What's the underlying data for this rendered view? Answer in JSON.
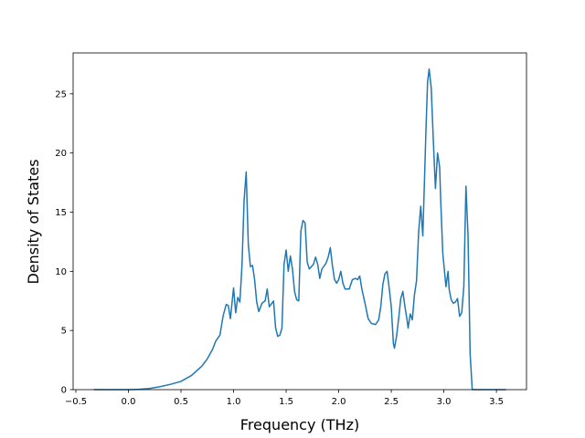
{
  "chart_data": {
    "type": "line",
    "x_label": "Frequency (THz)",
    "y_label": "Density of States",
    "x": [
      -0.33,
      0.0,
      0.1,
      0.2,
      0.3,
      0.4,
      0.5,
      0.6,
      0.7,
      0.75,
      0.8,
      0.83,
      0.87,
      0.9,
      0.93,
      0.95,
      0.97,
      1.0,
      1.02,
      1.04,
      1.06,
      1.08,
      1.1,
      1.12,
      1.14,
      1.16,
      1.18,
      1.2,
      1.22,
      1.24,
      1.27,
      1.3,
      1.32,
      1.34,
      1.38,
      1.4,
      1.42,
      1.44,
      1.46,
      1.48,
      1.5,
      1.52,
      1.54,
      1.56,
      1.58,
      1.6,
      1.62,
      1.64,
      1.66,
      1.68,
      1.7,
      1.72,
      1.76,
      1.78,
      1.8,
      1.82,
      1.84,
      1.88,
      1.9,
      1.92,
      1.94,
      1.96,
      1.98,
      2.0,
      2.02,
      2.04,
      2.06,
      2.1,
      2.13,
      2.16,
      2.18,
      2.2,
      2.22,
      2.25,
      2.28,
      2.31,
      2.35,
      2.38,
      2.4,
      2.42,
      2.44,
      2.46,
      2.48,
      2.5,
      2.52,
      2.53,
      2.55,
      2.57,
      2.59,
      2.61,
      2.63,
      2.65,
      2.66,
      2.68,
      2.7,
      2.72,
      2.74,
      2.76,
      2.78,
      2.8,
      2.83,
      2.845,
      2.86,
      2.88,
      2.9,
      2.92,
      2.94,
      2.96,
      2.97,
      2.99,
      3.02,
      3.04,
      3.05,
      3.07,
      3.09,
      3.11,
      3.13,
      3.15,
      3.17,
      3.19,
      3.21,
      3.23,
      3.25,
      3.27,
      3.59
    ],
    "series": [
      {
        "color": "#1f77b4",
        "values": [
          0,
          0,
          0.03,
          0.1,
          0.25,
          0.45,
          0.7,
          1.2,
          2.0,
          2.6,
          3.4,
          4.1,
          4.6,
          6.2,
          7.2,
          7.1,
          6.0,
          8.6,
          6.5,
          7.8,
          7.4,
          10.5,
          16,
          18.4,
          12.3,
          10.4,
          10.5,
          9.3,
          7.4,
          6.6,
          7.3,
          7.5,
          8.5,
          7.0,
          7.5,
          5.2,
          4.5,
          4.6,
          5.2,
          10.6,
          11.8,
          10.0,
          11.3,
          10.2,
          8.3,
          7.6,
          7.5,
          13.4,
          14.3,
          14.1,
          10.8,
          10.2,
          10.6,
          11.2,
          10.6,
          9.4,
          10.2,
          10.7,
          11.2,
          12.0,
          10.5,
          9.3,
          9.0,
          9.3,
          10.0,
          9.0,
          8.5,
          8.5,
          9.3,
          9.4,
          9.3,
          9.6,
          8.5,
          7.3,
          6.0,
          5.6,
          5.5,
          5.9,
          7.0,
          8.9,
          9.8,
          10.0,
          8.6,
          7.0,
          3.9,
          3.5,
          4.5,
          6.0,
          7.7,
          8.3,
          7.0,
          5.9,
          5.2,
          6.4,
          5.9,
          8.0,
          9.2,
          13.3,
          15.5,
          13.0,
          22,
          26,
          27.1,
          25.5,
          21,
          17,
          20,
          18.8,
          16,
          11.5,
          8.7,
          10,
          8.5,
          7.6,
          7.3,
          7.4,
          7.7,
          6.2,
          6.5,
          8.7,
          17.2,
          13,
          3,
          0,
          0
        ]
      }
    ],
    "xlim": [
      -0.526,
      3.786
    ],
    "ylim": [
      0,
      28.46
    ],
    "xticks": [
      {
        "value": -0.5,
        "label": "−0.5"
      },
      {
        "value": 0,
        "label": "0.0"
      },
      {
        "value": 0.5,
        "label": "0.5"
      },
      {
        "value": 1,
        "label": "1.0"
      },
      {
        "value": 1.5,
        "label": "1.5"
      },
      {
        "value": 2,
        "label": "2.0"
      },
      {
        "value": 2.5,
        "label": "2.5"
      },
      {
        "value": 3,
        "label": "3.0"
      },
      {
        "value": 3.5,
        "label": "3.5"
      }
    ],
    "yticks": [
      0,
      5,
      10,
      15,
      20,
      25
    ]
  }
}
